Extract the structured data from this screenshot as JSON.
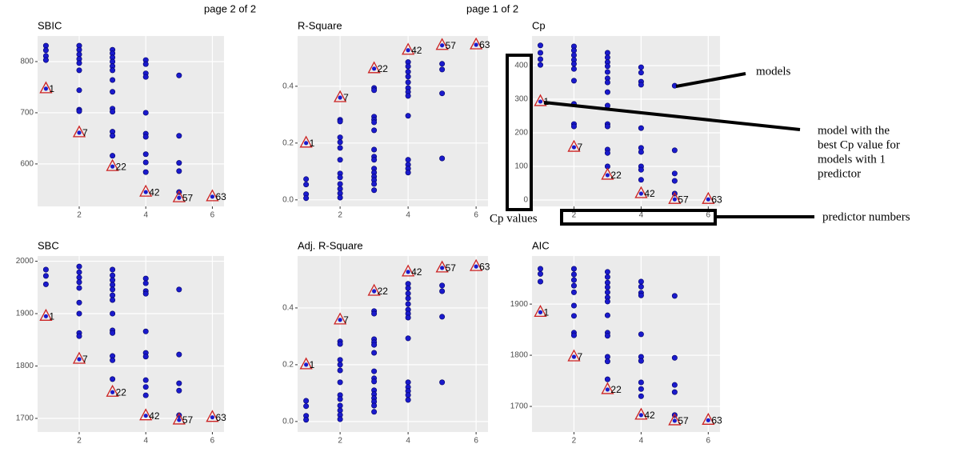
{
  "pages": [
    "page 2 of 2",
    "page 1 of 2"
  ],
  "annotations": {
    "models": "models",
    "best_model": [
      "model with the",
      "best Cp value for",
      "models with 1",
      "predictor"
    ],
    "cp_values": "Cp values",
    "predictor_numbers": "predictor numbers"
  },
  "chart_data": [
    {
      "type": "scatter",
      "title": "SBIC",
      "color": "#1a1acc",
      "best_color": "#cc2222",
      "x": [
        1,
        1,
        1,
        1,
        2,
        2,
        2,
        2,
        2,
        2,
        2,
        2,
        2,
        3,
        3,
        3,
        3,
        3,
        3,
        3,
        3,
        3,
        3,
        3,
        3,
        3,
        4,
        4,
        4,
        4,
        4,
        4,
        4,
        4,
        4,
        4,
        5,
        5,
        5,
        5,
        5
      ],
      "y": [
        831,
        822,
        811,
        803,
        831,
        823,
        814,
        805,
        797,
        783,
        744,
        706,
        703,
        823,
        816,
        808,
        800,
        791,
        783,
        764,
        741,
        708,
        702,
        663,
        655,
        616,
        803,
        795,
        777,
        770,
        700,
        659,
        653,
        619,
        603,
        584,
        773,
        655,
        602,
        586,
        545
      ],
      "best": {
        "x": [
          1,
          2,
          3,
          4,
          5,
          6
        ],
        "y": [
          747,
          661,
          595,
          545,
          534,
          536
        ],
        "labels": [
          1,
          7,
          22,
          42,
          57,
          63
        ]
      },
      "xlim": [
        0.75,
        6.35
      ],
      "ylim": [
        517,
        850
      ],
      "xticks": [
        2,
        4,
        6
      ],
      "yticks": [
        600,
        700,
        800
      ]
    },
    {
      "type": "scatter",
      "title": "R-Square",
      "color": "#1a1acc",
      "best_color": "#cc2222",
      "x": [
        1,
        1,
        1,
        1,
        2,
        2,
        2,
        2,
        2,
        2,
        2,
        2,
        2,
        2,
        2,
        2,
        3,
        3,
        3,
        3,
        3,
        3,
        3,
        3,
        3,
        3,
        3,
        3,
        3,
        3,
        3,
        4,
        4,
        4,
        4,
        4,
        4,
        4,
        4,
        4,
        4,
        4,
        4,
        4,
        5,
        5,
        5,
        5
      ],
      "y": [
        0.073,
        0.054,
        0.02,
        0.006,
        0.282,
        0.276,
        0.22,
        0.203,
        0.183,
        0.141,
        0.093,
        0.079,
        0.056,
        0.039,
        0.023,
        0.008,
        0.394,
        0.386,
        0.293,
        0.282,
        0.273,
        0.245,
        0.177,
        0.152,
        0.141,
        0.11,
        0.096,
        0.082,
        0.07,
        0.056,
        0.034,
        0.485,
        0.47,
        0.451,
        0.434,
        0.414,
        0.394,
        0.38,
        0.366,
        0.296,
        0.141,
        0.124,
        0.11,
        0.096,
        0.479,
        0.459,
        0.375,
        0.146
      ],
      "best": {
        "x": [
          1,
          2,
          3,
          4,
          5,
          6
        ],
        "y": [
          0.2,
          0.36,
          0.462,
          0.527,
          0.544,
          0.546
        ],
        "labels": [
          1,
          7,
          22,
          42,
          57,
          63
        ]
      },
      "xlim": [
        0.75,
        6.35
      ],
      "ylim": [
        -0.023,
        0.577
      ],
      "xticks": [
        2,
        4,
        6
      ],
      "yticks": [
        {
          "value": 0,
          "label": "0.0"
        },
        0.2,
        0.4
      ]
    },
    {
      "type": "scatter",
      "title": "Cp",
      "color": "#1a1acc",
      "best_color": "#cc2222",
      "x": [
        1,
        1,
        1,
        1,
        2,
        2,
        2,
        2,
        2,
        2,
        2,
        2,
        2,
        2,
        3,
        3,
        3,
        3,
        3,
        3,
        3,
        3,
        3,
        3,
        3,
        3,
        3,
        3,
        4,
        4,
        4,
        4,
        4,
        4,
        4,
        4,
        4,
        4,
        5,
        5,
        5,
        5,
        5
      ],
      "y": [
        460,
        438,
        419,
        402,
        457,
        445,
        431,
        417,
        405,
        390,
        355,
        286,
        226,
        219,
        438,
        424,
        410,
        398,
        381,
        362,
        350,
        321,
        281,
        226,
        219,
        150,
        140,
        100,
        395,
        379,
        352,
        343,
        214,
        155,
        143,
        100,
        90,
        60,
        340,
        148,
        79,
        57,
        19
      ],
      "best": {
        "x": [
          1,
          2,
          3,
          4,
          5,
          6
        ],
        "y": [
          293,
          157,
          74,
          19,
          2,
          2
        ],
        "labels": [
          1,
          7,
          22,
          42,
          57,
          63
        ]
      },
      "xlim": [
        0.75,
        6.35
      ],
      "ylim": [
        -19,
        488
      ],
      "xticks": [
        2,
        4,
        6
      ],
      "yticks": [
        0,
        100,
        200,
        300,
        400
      ]
    },
    {
      "type": "scatter",
      "title": "SBC",
      "color": "#1a1acc",
      "best_color": "#cc2222",
      "x": [
        1,
        1,
        1,
        2,
        2,
        2,
        2,
        2,
        2,
        2,
        2,
        2,
        3,
        3,
        3,
        3,
        3,
        3,
        3,
        3,
        3,
        3,
        3,
        3,
        3,
        4,
        4,
        4,
        4,
        4,
        4,
        4,
        4,
        4,
        4,
        5,
        5,
        5,
        5,
        5
      ],
      "y": [
        1984,
        1972,
        1956,
        1990,
        1979,
        1969,
        1960,
        1949,
        1921,
        1900,
        1863,
        1857,
        1984,
        1973,
        1964,
        1955,
        1946,
        1935,
        1926,
        1900,
        1868,
        1863,
        1819,
        1811,
        1775,
        1967,
        1958,
        1943,
        1938,
        1866,
        1825,
        1818,
        1773,
        1760,
        1744,
        1946,
        1822,
        1767,
        1753,
        1706
      ],
      "best": {
        "x": [
          1,
          2,
          3,
          4,
          5,
          6
        ],
        "y": [
          1895,
          1813,
          1750,
          1705,
          1697,
          1702
        ],
        "labels": [
          1,
          7,
          22,
          42,
          57,
          63
        ]
      },
      "xlim": [
        0.75,
        6.35
      ],
      "ylim": [
        1674,
        2010
      ],
      "xticks": [
        2,
        4,
        6
      ],
      "yticks": [
        1700,
        1800,
        1900,
        2000
      ]
    },
    {
      "type": "scatter",
      "title": "Adj. R-Square",
      "color": "#1a1acc",
      "best_color": "#cc2222",
      "x": [
        1,
        1,
        1,
        1,
        2,
        2,
        2,
        2,
        2,
        2,
        2,
        2,
        2,
        2,
        2,
        2,
        3,
        3,
        3,
        3,
        3,
        3,
        3,
        3,
        3,
        3,
        3,
        3,
        3,
        3,
        3,
        4,
        4,
        4,
        4,
        4,
        4,
        4,
        4,
        4,
        4,
        4,
        4,
        4,
        4,
        5,
        5,
        5,
        5
      ],
      "y": [
        0.073,
        0.054,
        0.02,
        0.006,
        0.282,
        0.273,
        0.217,
        0.2,
        0.18,
        0.138,
        0.093,
        0.079,
        0.056,
        0.039,
        0.023,
        0.008,
        0.389,
        0.38,
        0.29,
        0.279,
        0.27,
        0.242,
        0.177,
        0.152,
        0.141,
        0.11,
        0.096,
        0.082,
        0.07,
        0.056,
        0.034,
        0.485,
        0.47,
        0.451,
        0.434,
        0.414,
        0.394,
        0.38,
        0.366,
        0.293,
        0.138,
        0.121,
        0.107,
        0.093,
        0.076,
        0.479,
        0.459,
        0.369,
        0.138
      ],
      "best": {
        "x": [
          1,
          2,
          3,
          4,
          5,
          6
        ],
        "y": [
          0.2,
          0.358,
          0.459,
          0.527,
          0.541,
          0.546
        ],
        "labels": [
          1,
          7,
          22,
          42,
          57,
          63
        ]
      },
      "xlim": [
        0.75,
        6.35
      ],
      "ylim": [
        -0.037,
        0.583
      ],
      "xticks": [
        2,
        4,
        6
      ],
      "yticks": [
        {
          "value": 0,
          "label": "0.0"
        },
        0.2,
        0.4
      ]
    },
    {
      "type": "scatter",
      "title": "AIC",
      "color": "#1a1acc",
      "best_color": "#cc2222",
      "x": [
        1,
        1,
        1,
        2,
        2,
        2,
        2,
        2,
        2,
        2,
        2,
        2,
        3,
        3,
        3,
        3,
        3,
        3,
        3,
        3,
        3,
        3,
        3,
        3,
        3,
        4,
        4,
        4,
        4,
        4,
        4,
        4,
        4,
        4,
        4,
        5,
        5,
        5,
        5,
        5
      ],
      "y": [
        1969,
        1959,
        1944,
        1969,
        1958,
        1947,
        1936,
        1923,
        1897,
        1877,
        1844,
        1839,
        1963,
        1953,
        1942,
        1933,
        1923,
        1913,
        1905,
        1878,
        1844,
        1838,
        1797,
        1788,
        1753,
        1944,
        1934,
        1922,
        1917,
        1841,
        1797,
        1789,
        1747,
        1734,
        1720,
        1916,
        1795,
        1742,
        1728,
        1683
      ],
      "best": {
        "x": [
          1,
          2,
          3,
          4,
          5,
          6
        ],
        "y": [
          1884,
          1797,
          1733,
          1683,
          1672,
          1673
        ],
        "labels": [
          1,
          7,
          22,
          42,
          57,
          63
        ]
      },
      "xlim": [
        0.75,
        6.35
      ],
      "ylim": [
        1650,
        1994
      ],
      "xticks": [
        2,
        4,
        6
      ],
      "yticks": [
        1700,
        1800,
        1900
      ]
    }
  ]
}
